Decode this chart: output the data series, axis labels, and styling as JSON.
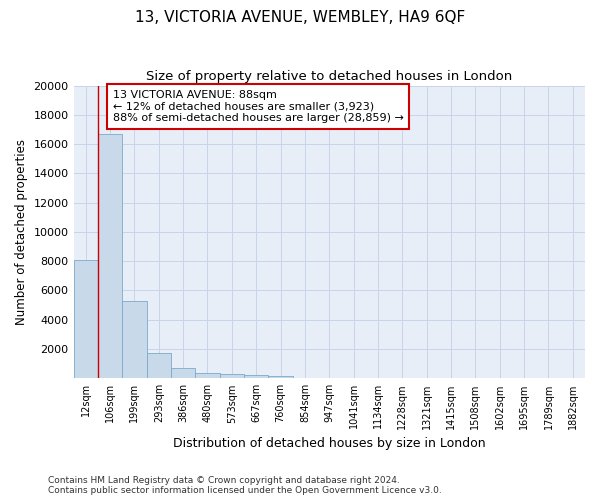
{
  "title": "13, VICTORIA AVENUE, WEMBLEY, HA9 6QF",
  "subtitle": "Size of property relative to detached houses in London",
  "xlabel": "Distribution of detached houses by size in London",
  "ylabel": "Number of detached properties",
  "categories": [
    "12sqm",
    "106sqm",
    "199sqm",
    "293sqm",
    "386sqm",
    "480sqm",
    "573sqm",
    "667sqm",
    "760sqm",
    "854sqm",
    "947sqm",
    "1041sqm",
    "1134sqm",
    "1228sqm",
    "1321sqm",
    "1415sqm",
    "1508sqm",
    "1602sqm",
    "1695sqm",
    "1789sqm",
    "1882sqm"
  ],
  "values": [
    8100,
    16700,
    5300,
    1750,
    700,
    380,
    270,
    200,
    180,
    0,
    0,
    0,
    0,
    0,
    0,
    0,
    0,
    0,
    0,
    0,
    0
  ],
  "bar_color": "#c8d9ea",
  "bar_edge_color": "#7baac8",
  "grid_color": "#c8d4e8",
  "background_color": "#e8eef8",
  "annotation_text": "13 VICTORIA AVENUE: 88sqm\n← 12% of detached houses are smaller (3,923)\n88% of semi-detached houses are larger (28,859) →",
  "annotation_box_color": "#ffffff",
  "annotation_box_edge": "#cc0000",
  "red_line_x": 0.5,
  "ylim": [
    0,
    20000
  ],
  "yticks": [
    0,
    2000,
    4000,
    6000,
    8000,
    10000,
    12000,
    14000,
    16000,
    18000,
    20000
  ],
  "footer": "Contains HM Land Registry data © Crown copyright and database right 2024.\nContains public sector information licensed under the Open Government Licence v3.0."
}
